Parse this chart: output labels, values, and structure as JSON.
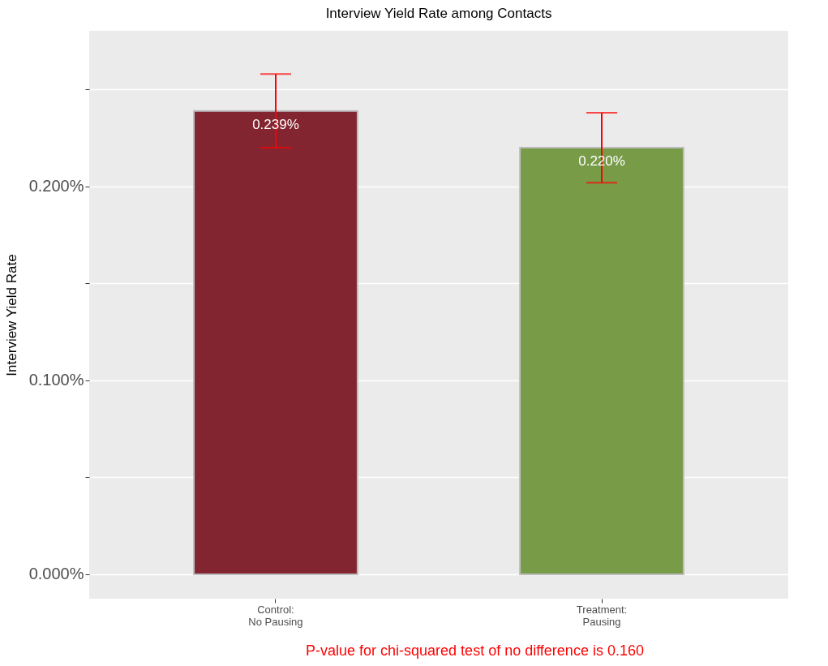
{
  "chart_data": {
    "type": "bar",
    "title": "Interview Yield Rate among Contacts",
    "ylabel": "Interview Yield Rate",
    "categories": [
      "Control:\nNo Pausing",
      "Treatment:\nPausing"
    ],
    "values": [
      0.239,
      0.22
    ],
    "colors": [
      "#832530",
      "#789b48"
    ],
    "errors": [
      0.019,
      0.018
    ],
    "value_labels": [
      "0.239%",
      "0.220%"
    ],
    "ylim": [
      -0.0126,
      0.2803
    ],
    "yticks": [
      {
        "value": 0,
        "label": "0.000%"
      },
      {
        "value": 0.05,
        "label": null
      },
      {
        "value": 0.1,
        "label": "0.100%"
      },
      {
        "value": 0.15,
        "label": null
      },
      {
        "value": 0.2,
        "label": "0.200%"
      },
      {
        "value": 0.25,
        "label": null
      }
    ],
    "grid": true,
    "annotations": [
      "P-value for chi-squared test of no difference is 0.160"
    ]
  }
}
